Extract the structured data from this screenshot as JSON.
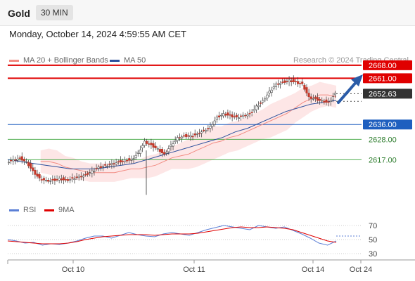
{
  "header": {
    "title": "Gold",
    "timeframe": "30 MIN"
  },
  "timestamp": "Monday, October 14, 2024 4:59:55 AM CET",
  "legend": {
    "ma20_bb": {
      "label": "MA 20 + Bollinger Bands",
      "color": "#f28b82"
    },
    "ma50": {
      "label": "MA 50",
      "color": "#2b4f9c"
    }
  },
  "credit": "Research © 2024 Trading Central",
  "colors": {
    "resistance": "#e00000",
    "pivot": "#1f5fbf",
    "support": "#39a339",
    "arrow": "#2b5ca8",
    "candle": "#c0392b",
    "band_fill": "#fde3e3"
  },
  "levels": [
    {
      "value": 2668.0,
      "label": "2668.00",
      "kind": "resistance"
    },
    {
      "value": 2661.0,
      "label": "2661.00",
      "kind": "resistance"
    },
    {
      "value": 2652.63,
      "label": "2652.63",
      "kind": "current"
    },
    {
      "value": 2636.0,
      "label": "2636.00",
      "kind": "pivot"
    },
    {
      "value": 2628.0,
      "label": "2628.00",
      "kind": "support"
    },
    {
      "value": 2617.0,
      "label": "2617.00",
      "kind": "support"
    }
  ],
  "rsi_legend": {
    "rsi": {
      "label": "RSI",
      "color": "#5b7fd6"
    },
    "ma9": {
      "label": "9MA",
      "color": "#e00000"
    }
  },
  "rsi_ticks": [
    "70",
    "50",
    "30"
  ],
  "x_axis": [
    "Oct 10",
    "Oct 11",
    "Oct 14",
    "Oct 24"
  ],
  "chart_data": [
    {
      "type": "line",
      "title": "",
      "y_unit": "USD",
      "ylim": [
        2597,
        2671
      ],
      "x_ticks": [
        "Oct 10",
        "Oct 11",
        "Oct 14",
        "Oct 24"
      ],
      "series": [
        {
          "name": "Gold",
          "values": [
            2616,
            2617,
            2618,
            2616,
            2611,
            2607,
            2606,
            2606,
            2607,
            2606,
            2607,
            2608,
            2609,
            2611,
            2613,
            2614,
            2615,
            2616,
            2617,
            2617,
            2621,
            2627,
            2625,
            2623,
            2620,
            2625,
            2629,
            2630,
            2630,
            2631,
            2633,
            2635,
            2640,
            2642,
            2641,
            2640,
            2641,
            2642,
            2646,
            2649,
            2654,
            2658,
            2659,
            2660,
            2659,
            2658,
            2651,
            2650,
            2649,
            2648,
            2653
          ]
        },
        {
          "name": "MA 20",
          "values": [
            2616,
            2616,
            2615,
            2613,
            2612,
            2611,
            2610,
            2610,
            2610,
            2610,
            2611,
            2612,
            2612,
            2613,
            2614,
            2616,
            2618,
            2619,
            2620,
            2622,
            2624,
            2626,
            2627,
            2629,
            2630,
            2632,
            2634,
            2636,
            2638,
            2640,
            2642,
            2645,
            2648,
            2650,
            2652,
            2652,
            2651
          ]
        },
        {
          "name": "MA 50",
          "values": [
            2617,
            2616,
            2615,
            2614,
            2613,
            2612,
            2612,
            2612,
            2613,
            2614,
            2615,
            2617,
            2619,
            2621,
            2623,
            2625,
            2627,
            2629,
            2632,
            2634,
            2637,
            2640,
            2643,
            2645,
            2647,
            2648,
            2649
          ]
        }
      ]
    },
    {
      "type": "line",
      "title": "RSI",
      "ylim": [
        25,
        80
      ],
      "series": [
        {
          "name": "RSI",
          "values": [
            50,
            48,
            45,
            46,
            42,
            44,
            43,
            45,
            48,
            52,
            55,
            55,
            52,
            56,
            60,
            57,
            55,
            54,
            58,
            60,
            58,
            56,
            60,
            64,
            67,
            70,
            68,
            66,
            64,
            70,
            68,
            66,
            68,
            63,
            58,
            52,
            45,
            42,
            48
          ]
        },
        {
          "name": "9MA",
          "values": [
            48,
            47,
            46,
            45,
            44,
            44,
            44,
            45,
            47,
            50,
            52,
            54,
            55,
            56,
            57,
            57,
            57,
            56,
            57,
            58,
            58,
            58,
            59,
            61,
            63,
            65,
            67,
            68,
            67,
            67,
            68,
            67,
            66,
            64,
            60,
            56,
            52,
            48,
            46
          ]
        }
      ]
    }
  ]
}
